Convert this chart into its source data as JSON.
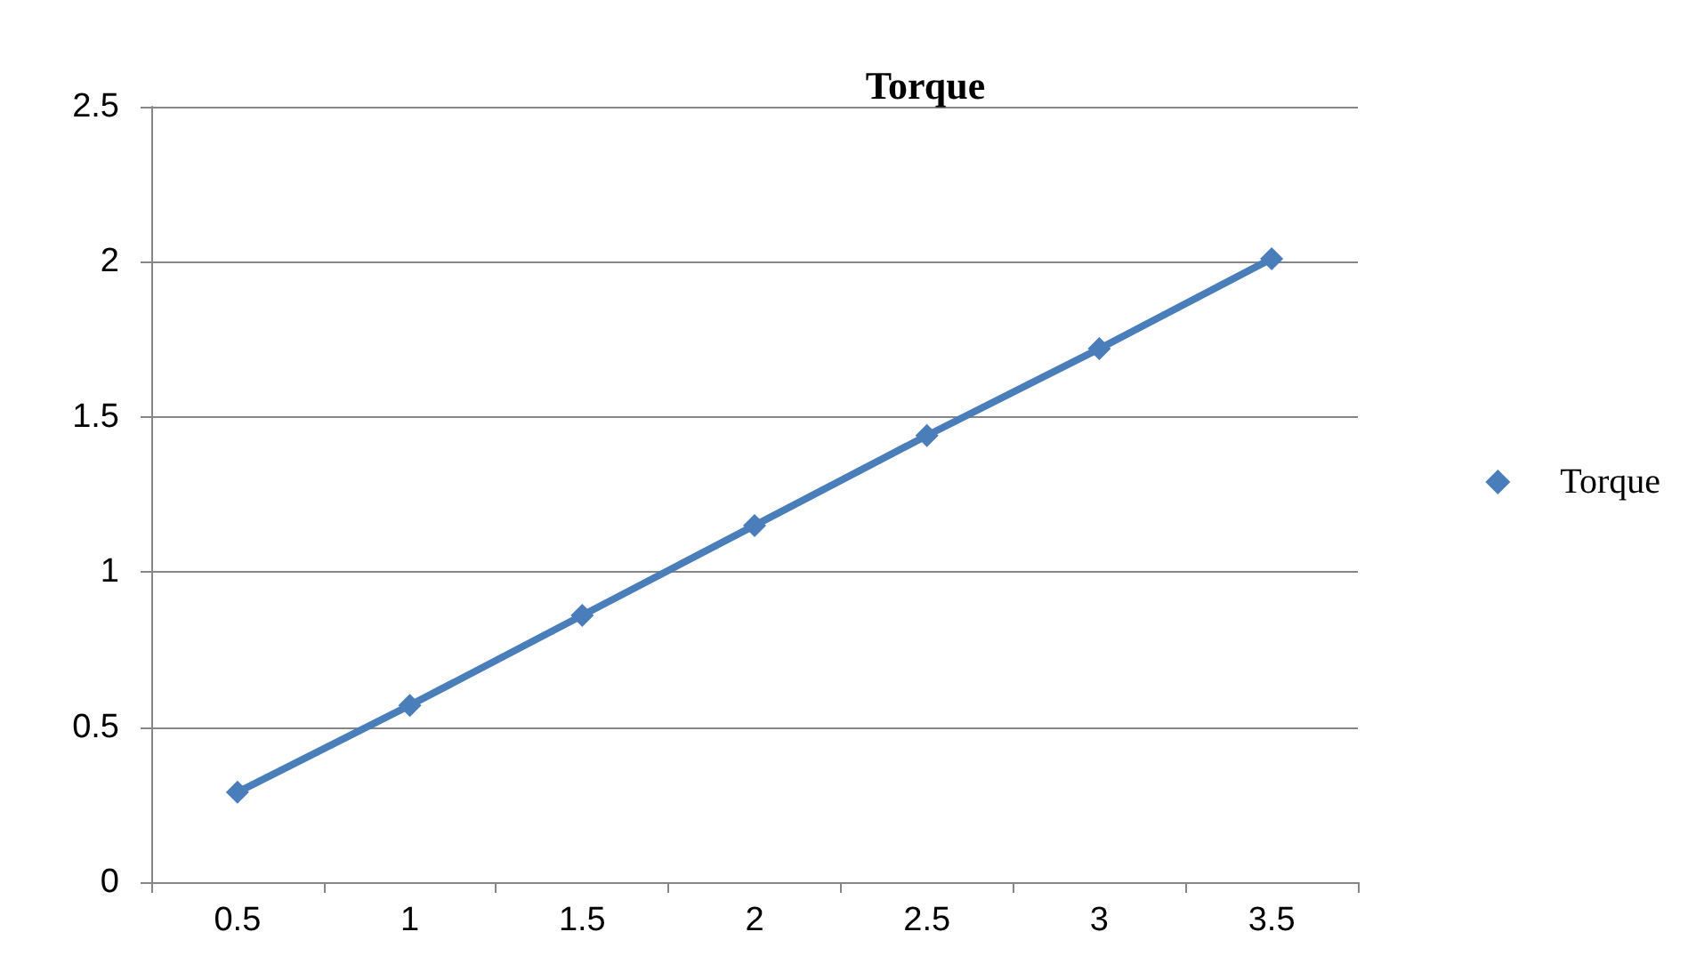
{
  "chart_data": {
    "type": "line",
    "title": "Torque",
    "categories": [
      "0.5",
      "1",
      "1.5",
      "2",
      "2.5",
      "3",
      "3.5"
    ],
    "series": [
      {
        "name": "Torque",
        "color": "#4a7ebb",
        "values": [
          0.29,
          0.57,
          0.86,
          1.15,
          1.44,
          1.72,
          2.01
        ]
      }
    ],
    "ylim": [
      0,
      2.5
    ],
    "yticks": [
      0,
      0.5,
      1,
      1.5,
      2,
      2.5
    ],
    "grid": "y",
    "legend": "right",
    "marker": "diamond",
    "line_style": "solid"
  }
}
